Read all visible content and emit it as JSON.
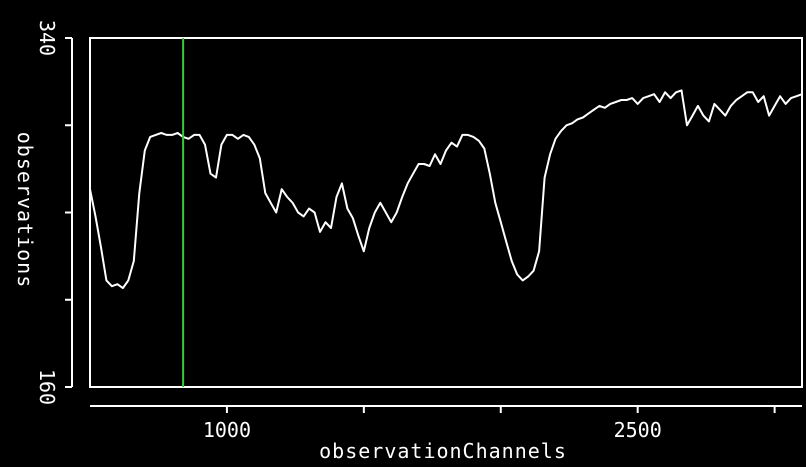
{
  "colors": {
    "background": "#000000",
    "foreground": "#ffffff",
    "marker": "#33cc33"
  },
  "chart_data": {
    "type": "line",
    "title": "",
    "xlabel": "observationChannels",
    "ylabel": "observations",
    "xlim": [
      500,
      3100
    ],
    "ylim": [
      160,
      340
    ],
    "x_ticks": [
      1000,
      1500,
      2000,
      2500,
      3000
    ],
    "x_tick_labels": [
      "1000",
      "",
      "",
      "2500",
      ""
    ],
    "y_tick_labels": [
      "160",
      "340"
    ],
    "marker_x": 840,
    "series": [
      {
        "x": [
          500,
          520,
          540,
          560,
          580,
          600,
          620,
          640,
          660,
          680,
          700,
          720,
          740,
          760,
          780,
          800,
          820,
          840,
          860,
          880,
          900,
          920,
          940,
          960,
          980,
          1000,
          1020,
          1040,
          1060,
          1080,
          1100,
          1120,
          1140,
          1160,
          1180,
          1200,
          1220,
          1240,
          1260,
          1280,
          1300,
          1320,
          1340,
          1360,
          1380,
          1400,
          1420,
          1440,
          1460,
          1480,
          1500,
          1520,
          1540,
          1560,
          1580,
          1600,
          1620,
          1640,
          1660,
          1680,
          1700,
          1720,
          1740,
          1760,
          1780,
          1800,
          1820,
          1840,
          1860,
          1880,
          1900,
          1920,
          1940,
          1960,
          1980,
          2000,
          2020,
          2040,
          2060,
          2080,
          2100,
          2120,
          2140,
          2160,
          2180,
          2200,
          2220,
          2240,
          2260,
          2280,
          2300,
          2320,
          2340,
          2360,
          2380,
          2400,
          2420,
          2440,
          2460,
          2480,
          2500,
          2520,
          2540,
          2560,
          2580,
          2600,
          2620,
          2640,
          2660,
          2680,
          2700,
          2720,
          2740,
          2760,
          2780,
          2800,
          2820,
          2840,
          2860,
          2880,
          2900,
          2920,
          2940,
          2960,
          2980,
          3000,
          3020,
          3040,
          3060,
          3080,
          3100
        ],
        "y": [
          262,
          248,
          232,
          215,
          212,
          213,
          211,
          215,
          225,
          260,
          282,
          289,
          290,
          291,
          290,
          290,
          291,
          289,
          288,
          290,
          290,
          285,
          270,
          268,
          285,
          290,
          290,
          288,
          290,
          289,
          285,
          278,
          260,
          255,
          250,
          262,
          258,
          255,
          250,
          248,
          252,
          250,
          240,
          245,
          242,
          258,
          265,
          252,
          247,
          238,
          230,
          242,
          250,
          255,
          250,
          245,
          250,
          258,
          265,
          270,
          275,
          275,
          274,
          280,
          275,
          282,
          286,
          284,
          290,
          290,
          289,
          287,
          283,
          270,
          255,
          245,
          235,
          225,
          218,
          215,
          217,
          220,
          230,
          268,
          280,
          288,
          292,
          295,
          296,
          298,
          299,
          301,
          303,
          305,
          304,
          306,
          307,
          308,
          308,
          309,
          306,
          309,
          310,
          311,
          307,
          312,
          309,
          312,
          313,
          295,
          300,
          305,
          300,
          297,
          306,
          303,
          300,
          305,
          308,
          310,
          312,
          312,
          307,
          310,
          300,
          305,
          310,
          306,
          309,
          310,
          311
        ]
      }
    ]
  }
}
